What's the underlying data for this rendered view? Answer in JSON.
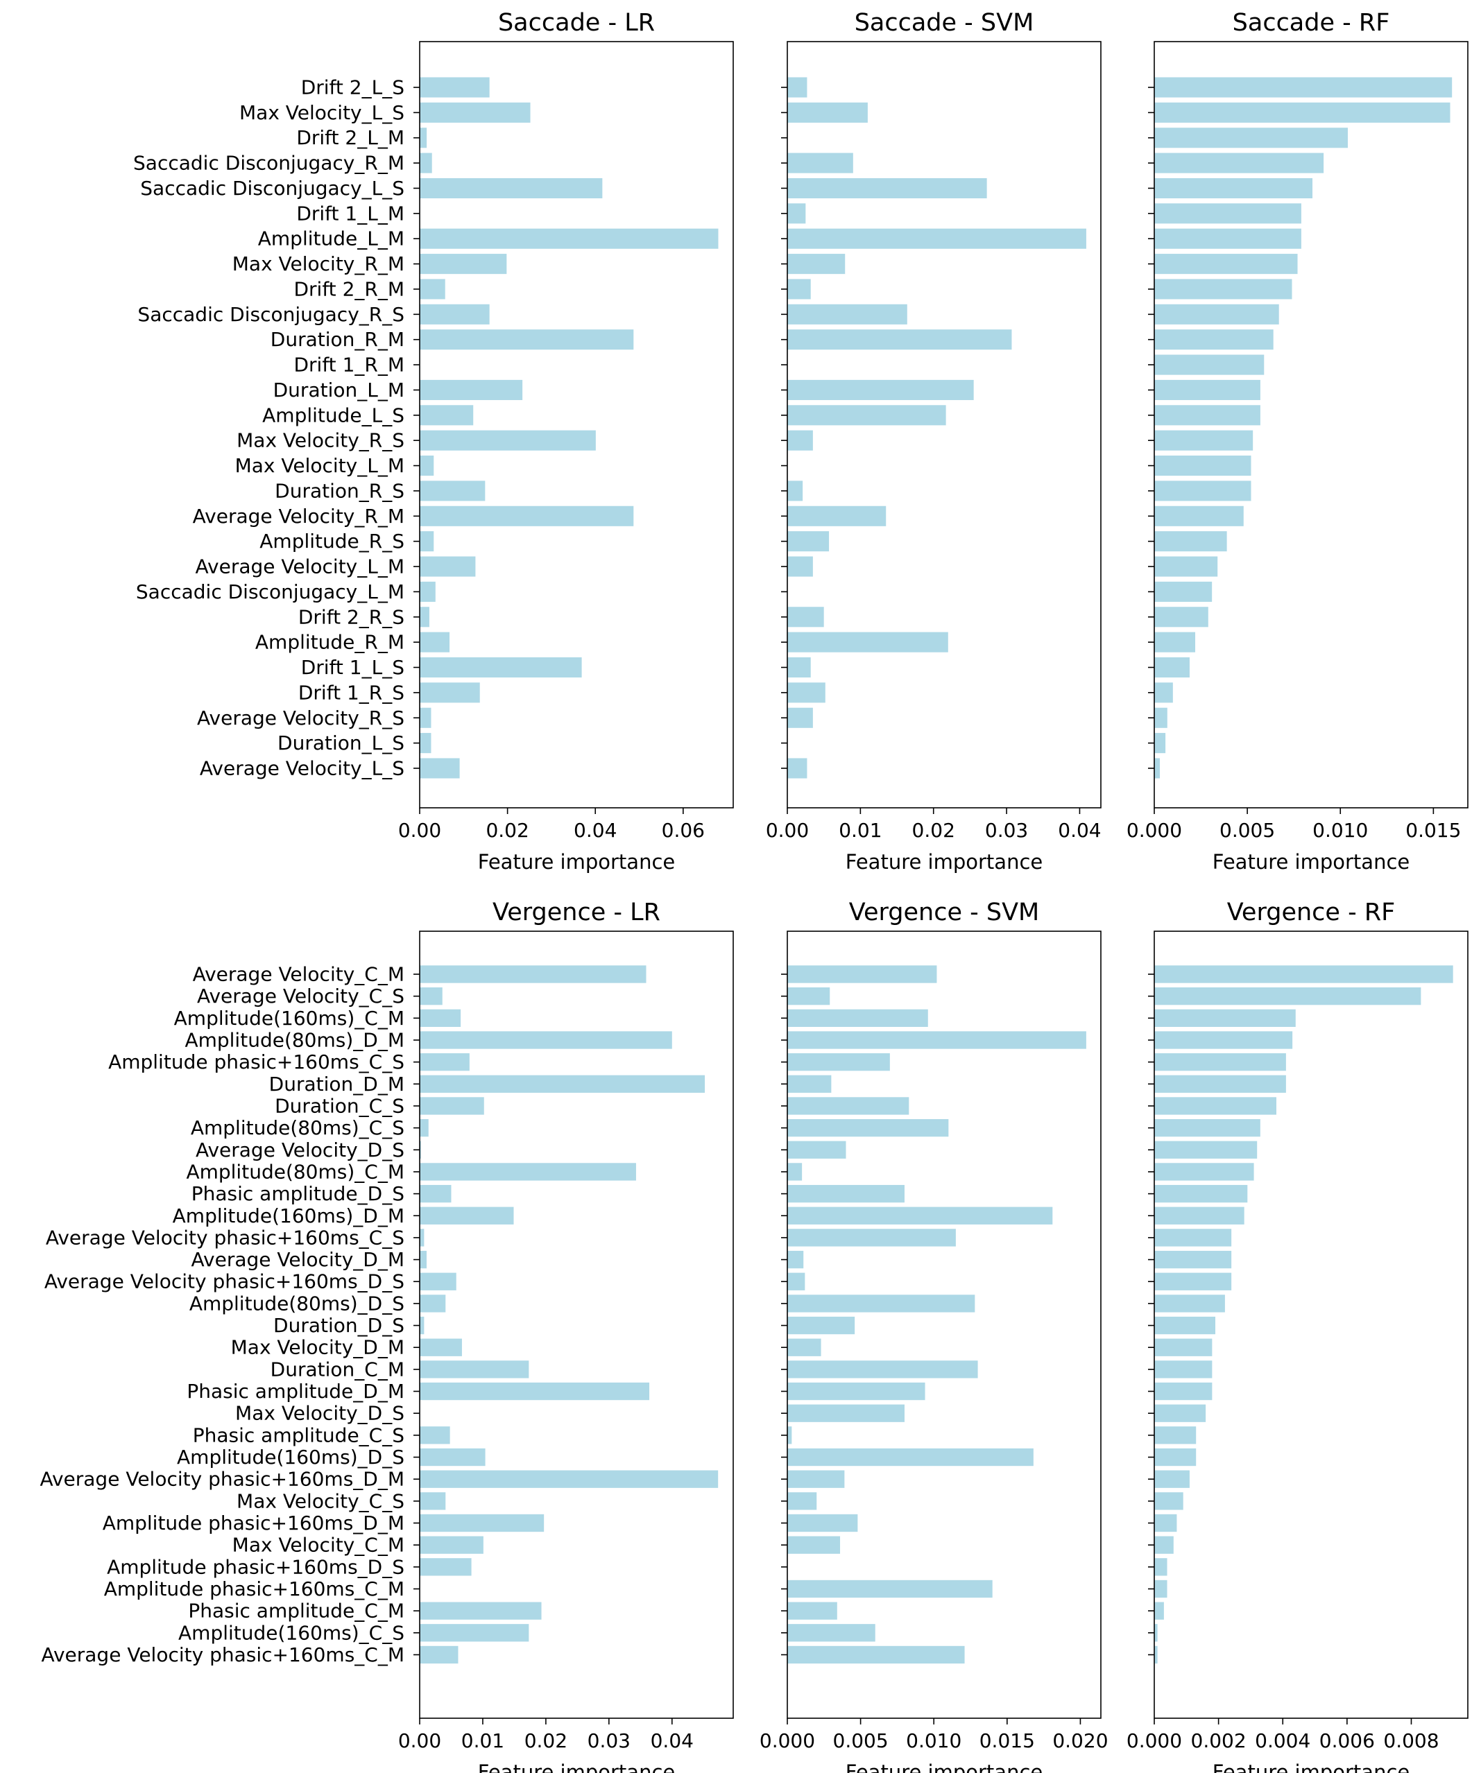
{
  "colors": {
    "bar": "#add8e6",
    "axis": "#000000",
    "background": "#ffffff"
  },
  "chart_data": [
    {
      "type": "bar",
      "orientation": "horizontal",
      "title": "Saccade - LR",
      "xlabel": "Feature importance",
      "ylabel": "",
      "xlim": [
        0,
        0.0714
      ],
      "xticks": [
        0,
        0.02,
        0.04,
        0.06
      ],
      "tick_decimals": 2,
      "categories": [
        "Drift 2_L_S",
        "Max Velocity_L_S",
        "Drift 2_L_M",
        "Saccadic Disconjugacy_R_M",
        "Saccadic Disconjugacy_L_S",
        "Drift 1_L_M",
        "Amplitude_L_M",
        "Max Velocity_R_M",
        "Drift 2_R_M",
        "Saccadic Disconjugacy_R_S",
        "Duration_R_M",
        "Drift 1_R_M",
        "Duration_L_M",
        "Amplitude_L_S",
        "Max Velocity_R_S",
        "Max Velocity_L_M",
        "Duration_R_S",
        "Average Velocity_R_M",
        "Amplitude_R_S",
        "Average Velocity_L_M",
        "Saccadic Disconjugacy_L_M",
        "Drift 2_R_S",
        "Amplitude_R_M",
        "Drift 1_L_S",
        "Drift 1_R_S",
        "Average Velocity_R_S",
        "Duration_L_S",
        "Average Velocity_L_S"
      ],
      "values": [
        0.0159,
        0.0252,
        0.0016,
        0.0028,
        0.0416,
        0,
        0.068,
        0.0198,
        0.0058,
        0.0159,
        0.0487,
        0,
        0.0234,
        0.0122,
        0.0401,
        0.0032,
        0.0149,
        0.0487,
        0.0032,
        0.0127,
        0.0036,
        0.0022,
        0.0068,
        0.0369,
        0.0137,
        0.0026,
        0.0026,
        0.0091
      ]
    },
    {
      "type": "bar",
      "orientation": "horizontal",
      "title": "Saccade - SVM",
      "xlabel": "Feature importance",
      "ylabel": "",
      "xlim": [
        0,
        0.0429
      ],
      "xticks": [
        0,
        0.01,
        0.02,
        0.03,
        0.04
      ],
      "tick_decimals": 2,
      "categories": [
        "Drift 2_L_S",
        "Max Velocity_L_S",
        "Drift 2_L_M",
        "Saccadic Disconjugacy_R_M",
        "Saccadic Disconjugacy_L_S",
        "Drift 1_L_M",
        "Amplitude_L_M",
        "Max Velocity_R_M",
        "Drift 2_R_M",
        "Saccadic Disconjugacy_R_S",
        "Duration_R_M",
        "Drift 1_R_M",
        "Duration_L_M",
        "Amplitude_L_S",
        "Max Velocity_R_S",
        "Max Velocity_L_M",
        "Duration_R_S",
        "Average Velocity_R_M",
        "Amplitude_R_S",
        "Average Velocity_L_M",
        "Saccadic Disconjugacy_L_M",
        "Drift 2_R_S",
        "Amplitude_R_M",
        "Drift 1_L_S",
        "Drift 1_R_S",
        "Average Velocity_R_S",
        "Duration_L_S",
        "Average Velocity_L_S"
      ],
      "values": [
        0.0027,
        0.011,
        0,
        0.009,
        0.0273,
        0.0025,
        0.0409,
        0.0079,
        0.0032,
        0.0164,
        0.0307,
        0,
        0.0255,
        0.0217,
        0.0035,
        0,
        0.0021,
        0.0135,
        0.0057,
        0.0035,
        0,
        0.005,
        0.022,
        0.0032,
        0.0052,
        0.0035,
        0,
        0.0027
      ]
    },
    {
      "type": "bar",
      "orientation": "horizontal",
      "title": "Saccade - RF",
      "xlabel": "Feature importance",
      "ylabel": "",
      "xlim": [
        0,
        0.01685
      ],
      "xticks": [
        0,
        0.005,
        0.01,
        0.015
      ],
      "tick_decimals": 3,
      "categories": [
        "Drift 2_L_S",
        "Max Velocity_L_S",
        "Drift 2_L_M",
        "Saccadic Disconjugacy_R_M",
        "Saccadic Disconjugacy_L_S",
        "Drift 1_L_M",
        "Amplitude_L_M",
        "Max Velocity_R_M",
        "Drift 2_R_M",
        "Saccadic Disconjugacy_R_S",
        "Duration_R_M",
        "Drift 1_R_M",
        "Duration_L_M",
        "Amplitude_L_S",
        "Max Velocity_R_S",
        "Max Velocity_L_M",
        "Duration_R_S",
        "Average Velocity_R_M",
        "Amplitude_R_S",
        "Average Velocity_L_M",
        "Saccadic Disconjugacy_L_M",
        "Drift 2_R_S",
        "Amplitude_R_M",
        "Drift 1_L_S",
        "Drift 1_R_S",
        "Average Velocity_R_S",
        "Duration_L_S",
        "Average Velocity_L_S"
      ],
      "values": [
        0.016,
        0.0159,
        0.0104,
        0.0091,
        0.0085,
        0.0079,
        0.0079,
        0.0077,
        0.0074,
        0.0067,
        0.0064,
        0.0059,
        0.0057,
        0.0057,
        0.0053,
        0.0052,
        0.0052,
        0.0048,
        0.0039,
        0.0034,
        0.0031,
        0.0029,
        0.0022,
        0.0019,
        0.001,
        0.0007,
        0.0006,
        0.0003
      ]
    },
    {
      "type": "bar",
      "orientation": "horizontal",
      "title": "Vergence - LR",
      "xlabel": "Feature importance",
      "ylabel": "",
      "xlim": [
        0,
        0.0497
      ],
      "xticks": [
        0,
        0.01,
        0.02,
        0.03,
        0.04
      ],
      "tick_decimals": 2,
      "categories": [
        "Average Velocity_C_M",
        "Average Velocity_C_S",
        "Amplitude(160ms)_C_M",
        "Amplitude(80ms)_D_M",
        "Amplitude phasic+160ms_C_S",
        "Duration_D_M",
        "Duration_C_S",
        "Amplitude(80ms)_C_S",
        "Average Velocity_D_S",
        "Amplitude(80ms)_C_M",
        "Phasic amplitude_D_S",
        "Amplitude(160ms)_D_M",
        "Average Velocity phasic+160ms_C_S",
        "Average Velocity_D_M",
        "Average Velocity phasic+160ms_D_S",
        "Amplitude(80ms)_D_S",
        "Duration_D_S",
        "Max Velocity_D_M",
        "Duration_C_M",
        "Phasic amplitude_D_M",
        "Max Velocity_D_S",
        "Phasic amplitude_C_S",
        "Amplitude(160ms)_D_S",
        "Average Velocity phasic+160ms_D_M",
        "Max Velocity_C_S",
        "Amplitude phasic+160ms_D_M",
        "Max Velocity_C_M",
        "Amplitude phasic+160ms_D_S",
        "Amplitude phasic+160ms_C_M",
        "Phasic amplitude_C_M",
        "Amplitude(160ms)_C_S",
        "Average Velocity phasic+160ms_C_M"
      ],
      "values": [
        0.0359,
        0.0036,
        0.0065,
        0.04,
        0.0079,
        0.0452,
        0.0102,
        0.0014,
        0.0002,
        0.0343,
        0.005,
        0.0149,
        0.0007,
        0.0011,
        0.0058,
        0.0041,
        0.0007,
        0.0067,
        0.0173,
        0.0364,
        0,
        0.0048,
        0.0104,
        0.0473,
        0.0041,
        0.0197,
        0.0101,
        0.0082,
        0,
        0.0193,
        0.0173,
        0.0061
      ]
    },
    {
      "type": "bar",
      "orientation": "horizontal",
      "title": "Vergence - SVM",
      "xlabel": "Feature importance",
      "ylabel": "",
      "xlim": [
        0,
        0.0214
      ],
      "xticks": [
        0,
        0.005,
        0.01,
        0.015,
        0.02
      ],
      "tick_decimals": 3,
      "categories": [
        "Average Velocity_C_M",
        "Average Velocity_C_S",
        "Amplitude(160ms)_C_M",
        "Amplitude(80ms)_D_M",
        "Amplitude phasic+160ms_C_S",
        "Duration_D_M",
        "Duration_C_S",
        "Amplitude(80ms)_C_S",
        "Average Velocity_D_S",
        "Amplitude(80ms)_C_M",
        "Phasic amplitude_D_S",
        "Amplitude(160ms)_D_M",
        "Average Velocity phasic+160ms_C_S",
        "Average Velocity_D_M",
        "Average Velocity phasic+160ms_D_S",
        "Amplitude(80ms)_D_S",
        "Duration_D_S",
        "Max Velocity_D_M",
        "Duration_C_M",
        "Phasic amplitude_D_M",
        "Max Velocity_D_S",
        "Phasic amplitude_C_S",
        "Amplitude(160ms)_D_S",
        "Average Velocity phasic+160ms_D_M",
        "Max Velocity_C_S",
        "Amplitude phasic+160ms_D_M",
        "Max Velocity_C_M",
        "Amplitude phasic+160ms_D_S",
        "Amplitude phasic+160ms_C_M",
        "Phasic amplitude_C_M",
        "Amplitude(160ms)_C_S",
        "Average Velocity phasic+160ms_C_M"
      ],
      "values": [
        0.0102,
        0.0029,
        0.0096,
        0.0204,
        0.007,
        0.003,
        0.0083,
        0.011,
        0.004,
        0.001,
        0.008,
        0.0181,
        0.0115,
        0.0011,
        0.0012,
        0.0128,
        0.0046,
        0.0023,
        0.013,
        0.0094,
        0.008,
        0.0003,
        0.0168,
        0.0039,
        0.002,
        0.0048,
        0.0036,
        0,
        0.014,
        0.0034,
        0.006,
        0.0121
      ]
    },
    {
      "type": "bar",
      "orientation": "horizontal",
      "title": "Vergence - RF",
      "xlabel": "Feature importance",
      "ylabel": "",
      "xlim": [
        0,
        0.00976
      ],
      "xticks": [
        0,
        0.002,
        0.004,
        0.006,
        0.008
      ],
      "tick_decimals": 3,
      "categories": [
        "Average Velocity_C_M",
        "Average Velocity_C_S",
        "Amplitude(160ms)_C_M",
        "Amplitude(80ms)_D_M",
        "Amplitude phasic+160ms_C_S",
        "Duration_D_M",
        "Duration_C_S",
        "Amplitude(80ms)_C_S",
        "Average Velocity_D_S",
        "Amplitude(80ms)_C_M",
        "Phasic amplitude_D_S",
        "Amplitude(160ms)_D_M",
        "Average Velocity phasic+160ms_C_S",
        "Average Velocity_D_M",
        "Average Velocity phasic+160ms_D_S",
        "Amplitude(80ms)_D_S",
        "Duration_D_S",
        "Max Velocity_D_M",
        "Duration_C_M",
        "Phasic amplitude_D_M",
        "Max Velocity_D_S",
        "Phasic amplitude_C_S",
        "Amplitude(160ms)_D_S",
        "Average Velocity phasic+160ms_D_M",
        "Max Velocity_C_S",
        "Amplitude phasic+160ms_D_M",
        "Max Velocity_C_M",
        "Amplitude phasic+160ms_D_S",
        "Amplitude phasic+160ms_C_M",
        "Phasic amplitude_C_M",
        "Amplitude(160ms)_C_S",
        "Average Velocity phasic+160ms_C_M"
      ],
      "values": [
        0.0093,
        0.0083,
        0.0044,
        0.0043,
        0.0041,
        0.0041,
        0.0038,
        0.0033,
        0.0032,
        0.0031,
        0.0029,
        0.0028,
        0.0024,
        0.0024,
        0.0024,
        0.0022,
        0.0019,
        0.0018,
        0.0018,
        0.0018,
        0.0016,
        0.0013,
        0.0013,
        0.0011,
        0.0009,
        0.0007,
        0.0006,
        0.0004,
        0.0004,
        0.0003,
        0.0001,
        0.0001
      ]
    }
  ]
}
